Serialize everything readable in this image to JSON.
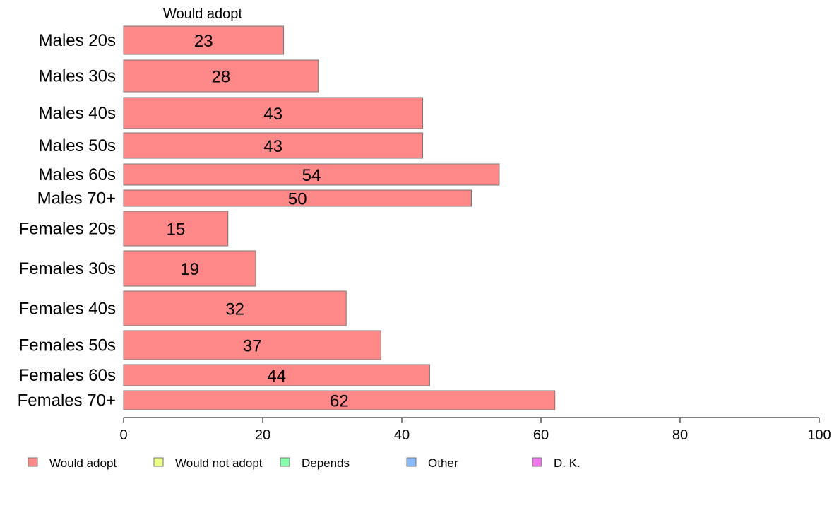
{
  "chart_data": {
    "type": "bar",
    "orientation": "horizontal",
    "stacked": true,
    "column_title": "Would adopt",
    "categories": [
      "Males 20s",
      "Males 30s",
      "Males 40s",
      "Males 50s",
      "Males 60s",
      "Males 70+",
      "Females 20s",
      "Females 30s",
      "Females 40s",
      "Females 50s",
      "Females 60s",
      "Females 70+"
    ],
    "series": [
      {
        "name": "Would adopt",
        "color": "#ff8888",
        "values": [
          23,
          28,
          43,
          43,
          54,
          50,
          15,
          19,
          32,
          37,
          44,
          62
        ]
      }
    ],
    "data_labels": [
      "23",
      "28",
      "43",
      "43",
      "54",
      "50",
      "15",
      "19",
      "32",
      "37",
      "44",
      "62"
    ],
    "xlim": [
      0,
      100
    ],
    "x_ticks": [
      0,
      20,
      40,
      60,
      80,
      100
    ],
    "x_tick_labels": [
      "0",
      "20",
      "40",
      "60",
      "80",
      "100"
    ],
    "legend": [
      {
        "label": "Would adopt",
        "color": "#ff8888"
      },
      {
        "label": "Would not adopt",
        "color": "#eeff88"
      },
      {
        "label": "Depends",
        "color": "#88ffaa"
      },
      {
        "label": "Other",
        "color": "#88bbff"
      },
      {
        "label": "D. K.",
        "color": "#ee77ee"
      }
    ],
    "legend_position": "bottom",
    "grid": false
  }
}
